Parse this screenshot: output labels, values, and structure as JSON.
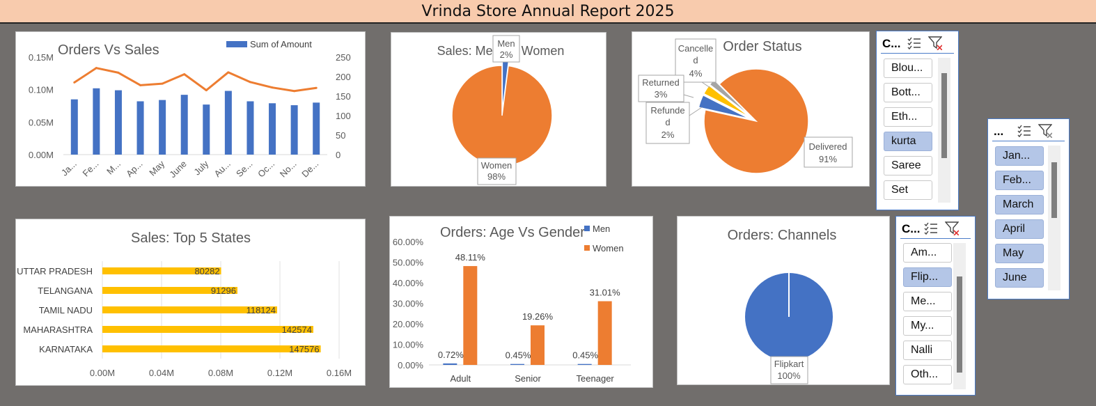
{
  "report_title": "Vrinda Store Annual Report 2025",
  "colors": {
    "blue": "#4472c4",
    "orange": "#ed7d31",
    "gold": "#ffc000",
    "gray": "#a5a5a5"
  },
  "chart_data": [
    {
      "id": "orders-vs-sales",
      "type": "bar",
      "title": "Orders Vs Sales",
      "categories": [
        "Ja...",
        "Fe...",
        "M...",
        "Ap...",
        "May",
        "June",
        "July",
        "Au...",
        "Se...",
        "Oc...",
        "No...",
        "De..."
      ],
      "series": [
        {
          "name": "Sum of Amount",
          "type": "bar",
          "axis": "left",
          "values": [
            0.085,
            0.102,
            0.099,
            0.082,
            0.084,
            0.092,
            0.077,
            0.098,
            0.082,
            0.079,
            0.076,
            0.08
          ]
        },
        {
          "name": "",
          "type": "line",
          "axis": "right",
          "values": [
            185,
            222,
            210,
            178,
            182,
            206,
            165,
            211,
            186,
            172,
            163,
            171
          ]
        }
      ],
      "left_ticks": [
        "0.00M",
        "0.05M",
        "0.10M",
        "0.15M"
      ],
      "left_ylim": [
        0,
        0.15
      ],
      "right_ticks": [
        "0",
        "50",
        "100",
        "150",
        "200",
        "250"
      ],
      "right_ylim": [
        0,
        250
      ],
      "legend": "top-right"
    },
    {
      "id": "sales-men-vs-women",
      "type": "pie",
      "title": "Sales: Men Vs Women",
      "slices": [
        {
          "label": "Men",
          "pct_label": "2%",
          "value": 2,
          "color": "#4472c4"
        },
        {
          "label": "Women",
          "pct_label": "98%",
          "value": 98,
          "color": "#ed7d31"
        }
      ]
    },
    {
      "id": "order-status",
      "type": "pie",
      "title": "Order Status",
      "slices": [
        {
          "label": "Delivered",
          "pct_label": "91%",
          "value": 91,
          "color": "#ed7d31"
        },
        {
          "label": "Cancelle d",
          "pct_label": "4%",
          "value": 4,
          "color": "#4472c4"
        },
        {
          "label": "Returned",
          "pct_label": "3%",
          "value": 3,
          "color": "#ffc000"
        },
        {
          "label": "Refunde d",
          "pct_label": "2%",
          "value": 2,
          "color": "#a5a5a5"
        }
      ]
    },
    {
      "id": "sales-top-5-states",
      "type": "bar",
      "orientation": "horizontal",
      "title": "Sales: Top 5 States",
      "categories": [
        "UTTAR PRADESH",
        "TELANGANA",
        "TAMIL NADU",
        "MAHARASHTRA",
        "KARNATAKA"
      ],
      "values": [
        80282,
        91296,
        118124,
        142574,
        147576
      ],
      "value_labels": [
        "80282",
        "91296",
        "118124",
        "142574",
        "147576"
      ],
      "x_ticks": [
        "0.00M",
        "0.04M",
        "0.08M",
        "0.12M",
        "0.16M"
      ],
      "xlim": [
        0,
        160000
      ]
    },
    {
      "id": "orders-age-vs-gender",
      "type": "bar",
      "title": "Orders: Age Vs Gender",
      "categories": [
        "Adult",
        "Senior",
        "Teenager"
      ],
      "series": [
        {
          "name": "Men",
          "values": [
            0.72,
            0.45,
            0.45
          ],
          "labels": [
            "0.72%",
            "0.45%",
            "0.45%"
          ]
        },
        {
          "name": "Women",
          "values": [
            48.11,
            19.26,
            31.01
          ],
          "labels": [
            "48.11%",
            "19.26%",
            "31.01%"
          ]
        }
      ],
      "y_ticks": [
        "0.00%",
        "10.00%",
        "20.00%",
        "30.00%",
        "40.00%",
        "50.00%",
        "60.00%"
      ],
      "ylim": [
        0,
        60
      ],
      "legend": "top-right"
    },
    {
      "id": "orders-channels",
      "type": "pie",
      "title": "Orders: Channels",
      "slices": [
        {
          "label": "Flipkart",
          "pct_label": "100%",
          "value": 100,
          "color": "#4472c4"
        }
      ]
    }
  ],
  "slicers": {
    "category": {
      "header": "C...",
      "items": [
        {
          "label": "Blou...",
          "selected": false
        },
        {
          "label": "Bott...",
          "selected": false
        },
        {
          "label": "Eth...",
          "selected": false
        },
        {
          "label": "kurta",
          "selected": true
        },
        {
          "label": "Saree",
          "selected": false
        },
        {
          "label": "Set",
          "selected": false
        }
      ]
    },
    "month": {
      "header": "...",
      "items": [
        {
          "label": "Jan...",
          "selected": true
        },
        {
          "label": "Feb...",
          "selected": true
        },
        {
          "label": "March",
          "selected": true
        },
        {
          "label": "April",
          "selected": true
        },
        {
          "label": "May",
          "selected": true
        },
        {
          "label": "June",
          "selected": true
        }
      ]
    },
    "channel": {
      "header": "C...",
      "items": [
        {
          "label": "Am...",
          "selected": false
        },
        {
          "label": "Flip...",
          "selected": true
        },
        {
          "label": "Me...",
          "selected": false
        },
        {
          "label": "My...",
          "selected": false
        },
        {
          "label": "Nalli",
          "selected": false
        },
        {
          "label": "Oth...",
          "selected": false
        }
      ]
    }
  }
}
